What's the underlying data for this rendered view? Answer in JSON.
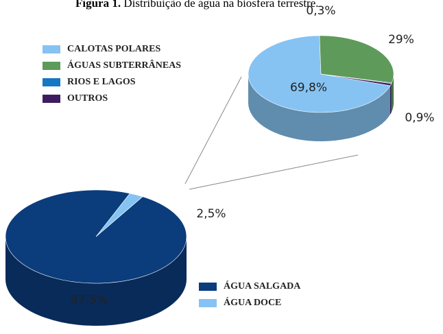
{
  "caption": {
    "label": "Figura 1.",
    "text": "Distribuição de água na biosfera terrestre."
  },
  "chart_data": [
    {
      "type": "pie",
      "categories": [
        "ÁGUA SALGADA",
        "ÁGUA DOCE"
      ],
      "values": [
        97.5,
        2.5
      ],
      "value_labels": [
        "97,5%",
        "2,5%"
      ],
      "colors": [
        "#0b3c7c",
        "#86c3f2"
      ]
    },
    {
      "type": "pie",
      "categories": [
        "CALOTAS POLARES",
        "ÁGUAS SUBTERRÂNEAS",
        "RIOS E LAGOS",
        "OUTROS"
      ],
      "values": [
        69.8,
        29,
        0.3,
        0.9
      ],
      "value_labels": [
        "69,8%",
        "29%",
        "0,3%",
        "0,9%"
      ],
      "colors": [
        "#86c3f2",
        "#5e9a5a",
        "#1677c2",
        "#3d1d5e"
      ]
    }
  ]
}
